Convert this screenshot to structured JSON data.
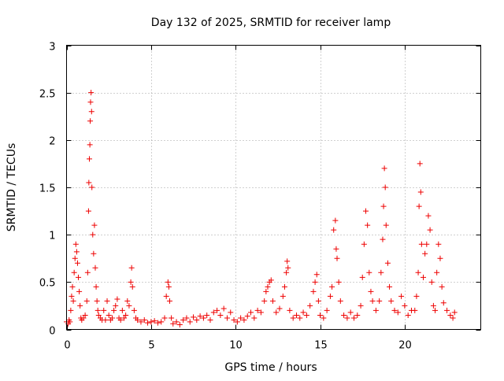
{
  "chart_data": {
    "type": "scatter",
    "title": "Day 132 of 2025, SRMTID for receiver lamp",
    "xlabel": "GPS time / hours",
    "ylabel": "SRMTID / TECUs",
    "xlim": [
      0,
      24.5
    ],
    "ylim": [
      0,
      3
    ],
    "x_ticks": [
      0,
      5,
      10,
      15,
      20
    ],
    "y_ticks": [
      0,
      0.5,
      1,
      1.5,
      2,
      2.5,
      3
    ],
    "x_tick_labels": [
      "0",
      "5",
      "10",
      "15",
      "20"
    ],
    "y_tick_labels": [
      "0",
      "0.5",
      "1",
      "1.5",
      "2",
      "2.5",
      "3"
    ],
    "grid": true,
    "marker": "+",
    "color": "#ee0000",
    "series": [
      {
        "name": "SRMTID",
        "points": [
          [
            0.0,
            0.08
          ],
          [
            0.1,
            0.06
          ],
          [
            0.15,
            0.1
          ],
          [
            0.2,
            0.08
          ],
          [
            0.25,
            0.2
          ],
          [
            0.3,
            0.35
          ],
          [
            0.35,
            0.45
          ],
          [
            0.4,
            0.3
          ],
          [
            0.45,
            0.6
          ],
          [
            0.5,
            0.75
          ],
          [
            0.55,
            0.9
          ],
          [
            0.6,
            0.82
          ],
          [
            0.65,
            0.7
          ],
          [
            0.7,
            0.55
          ],
          [
            0.75,
            0.4
          ],
          [
            0.8,
            0.25
          ],
          [
            0.85,
            0.12
          ],
          [
            0.9,
            0.1
          ],
          [
            1.0,
            0.12
          ],
          [
            1.1,
            0.15
          ],
          [
            1.2,
            0.3
          ],
          [
            1.25,
            0.6
          ],
          [
            1.3,
            1.25
          ],
          [
            1.32,
            1.55
          ],
          [
            1.35,
            1.8
          ],
          [
            1.38,
            1.95
          ],
          [
            1.4,
            2.2
          ],
          [
            1.42,
            2.4
          ],
          [
            1.45,
            2.5
          ],
          [
            1.48,
            2.3
          ],
          [
            1.5,
            1.5
          ],
          [
            1.55,
            1.0
          ],
          [
            1.6,
            0.8
          ],
          [
            1.65,
            1.1
          ],
          [
            1.7,
            0.65
          ],
          [
            1.75,
            0.45
          ],
          [
            1.8,
            0.3
          ],
          [
            1.85,
            0.2
          ],
          [
            1.9,
            0.15
          ],
          [
            2.0,
            0.12
          ],
          [
            2.1,
            0.1
          ],
          [
            2.2,
            0.2
          ],
          [
            2.3,
            0.1
          ],
          [
            2.4,
            0.3
          ],
          [
            2.5,
            0.15
          ],
          [
            2.6,
            0.1
          ],
          [
            2.7,
            0.12
          ],
          [
            2.8,
            0.2
          ],
          [
            2.9,
            0.25
          ],
          [
            3.0,
            0.32
          ],
          [
            3.1,
            0.12
          ],
          [
            3.2,
            0.1
          ],
          [
            3.3,
            0.2
          ],
          [
            3.4,
            0.12
          ],
          [
            3.5,
            0.15
          ],
          [
            3.6,
            0.3
          ],
          [
            3.7,
            0.25
          ],
          [
            3.8,
            0.5
          ],
          [
            3.85,
            0.65
          ],
          [
            3.9,
            0.45
          ],
          [
            4.0,
            0.2
          ],
          [
            4.1,
            0.12
          ],
          [
            4.2,
            0.1
          ],
          [
            4.4,
            0.08
          ],
          [
            4.6,
            0.1
          ],
          [
            4.8,
            0.07
          ],
          [
            5.0,
            0.08
          ],
          [
            5.2,
            0.09
          ],
          [
            5.4,
            0.07
          ],
          [
            5.6,
            0.08
          ],
          [
            5.8,
            0.12
          ],
          [
            5.9,
            0.35
          ],
          [
            6.0,
            0.5
          ],
          [
            6.05,
            0.45
          ],
          [
            6.1,
            0.3
          ],
          [
            6.2,
            0.12
          ],
          [
            6.3,
            0.06
          ],
          [
            6.5,
            0.08
          ],
          [
            6.7,
            0.05
          ],
          [
            6.9,
            0.1
          ],
          [
            7.1,
            0.12
          ],
          [
            7.3,
            0.08
          ],
          [
            7.5,
            0.13
          ],
          [
            7.7,
            0.1
          ],
          [
            7.9,
            0.14
          ],
          [
            8.1,
            0.12
          ],
          [
            8.3,
            0.15
          ],
          [
            8.5,
            0.1
          ],
          [
            8.7,
            0.18
          ],
          [
            8.9,
            0.2
          ],
          [
            9.1,
            0.15
          ],
          [
            9.3,
            0.22
          ],
          [
            9.5,
            0.12
          ],
          [
            9.7,
            0.18
          ],
          [
            9.9,
            0.1
          ],
          [
            10.1,
            0.08
          ],
          [
            10.3,
            0.12
          ],
          [
            10.5,
            0.1
          ],
          [
            10.7,
            0.14
          ],
          [
            10.9,
            0.18
          ],
          [
            11.1,
            0.12
          ],
          [
            11.3,
            0.2
          ],
          [
            11.5,
            0.18
          ],
          [
            11.7,
            0.3
          ],
          [
            11.8,
            0.4
          ],
          [
            11.9,
            0.45
          ],
          [
            12.0,
            0.5
          ],
          [
            12.1,
            0.52
          ],
          [
            12.2,
            0.3
          ],
          [
            12.4,
            0.18
          ],
          [
            12.6,
            0.22
          ],
          [
            12.8,
            0.35
          ],
          [
            12.9,
            0.45
          ],
          [
            13.0,
            0.6
          ],
          [
            13.05,
            0.72
          ],
          [
            13.1,
            0.65
          ],
          [
            13.2,
            0.2
          ],
          [
            13.4,
            0.12
          ],
          [
            13.6,
            0.15
          ],
          [
            13.8,
            0.12
          ],
          [
            14.0,
            0.18
          ],
          [
            14.2,
            0.15
          ],
          [
            14.4,
            0.25
          ],
          [
            14.6,
            0.4
          ],
          [
            14.7,
            0.5
          ],
          [
            14.8,
            0.58
          ],
          [
            14.9,
            0.3
          ],
          [
            15.0,
            0.15
          ],
          [
            15.2,
            0.12
          ],
          [
            15.4,
            0.2
          ],
          [
            15.6,
            0.35
          ],
          [
            15.7,
            0.45
          ],
          [
            15.8,
            1.05
          ],
          [
            15.9,
            1.15
          ],
          [
            15.95,
            0.85
          ],
          [
            16.0,
            0.75
          ],
          [
            16.1,
            0.5
          ],
          [
            16.2,
            0.3
          ],
          [
            16.4,
            0.15
          ],
          [
            16.6,
            0.12
          ],
          [
            16.8,
            0.18
          ],
          [
            17.0,
            0.12
          ],
          [
            17.2,
            0.15
          ],
          [
            17.4,
            0.25
          ],
          [
            17.5,
            0.55
          ],
          [
            17.6,
            0.9
          ],
          [
            17.7,
            1.25
          ],
          [
            17.8,
            1.1
          ],
          [
            17.9,
            0.6
          ],
          [
            18.0,
            0.4
          ],
          [
            18.1,
            0.3
          ],
          [
            18.3,
            0.2
          ],
          [
            18.5,
            0.3
          ],
          [
            18.6,
            0.6
          ],
          [
            18.7,
            0.95
          ],
          [
            18.75,
            1.3
          ],
          [
            18.8,
            1.7
          ],
          [
            18.85,
            1.5
          ],
          [
            18.9,
            1.1
          ],
          [
            19.0,
            0.7
          ],
          [
            19.1,
            0.45
          ],
          [
            19.2,
            0.3
          ],
          [
            19.4,
            0.2
          ],
          [
            19.6,
            0.18
          ],
          [
            19.8,
            0.35
          ],
          [
            20.0,
            0.25
          ],
          [
            20.2,
            0.15
          ],
          [
            20.4,
            0.2
          ],
          [
            20.6,
            0.2
          ],
          [
            20.7,
            0.35
          ],
          [
            20.8,
            0.6
          ],
          [
            20.85,
            1.3
          ],
          [
            20.9,
            1.75
          ],
          [
            20.95,
            1.45
          ],
          [
            21.0,
            0.9
          ],
          [
            21.1,
            0.55
          ],
          [
            21.2,
            0.8
          ],
          [
            21.3,
            0.9
          ],
          [
            21.4,
            1.2
          ],
          [
            21.5,
            1.05
          ],
          [
            21.6,
            0.5
          ],
          [
            21.7,
            0.25
          ],
          [
            21.8,
            0.2
          ],
          [
            21.9,
            0.6
          ],
          [
            22.0,
            0.9
          ],
          [
            22.1,
            0.75
          ],
          [
            22.2,
            0.45
          ],
          [
            22.3,
            0.28
          ],
          [
            22.5,
            0.2
          ],
          [
            22.7,
            0.15
          ],
          [
            22.85,
            0.12
          ],
          [
            22.95,
            0.18
          ]
        ]
      }
    ]
  }
}
